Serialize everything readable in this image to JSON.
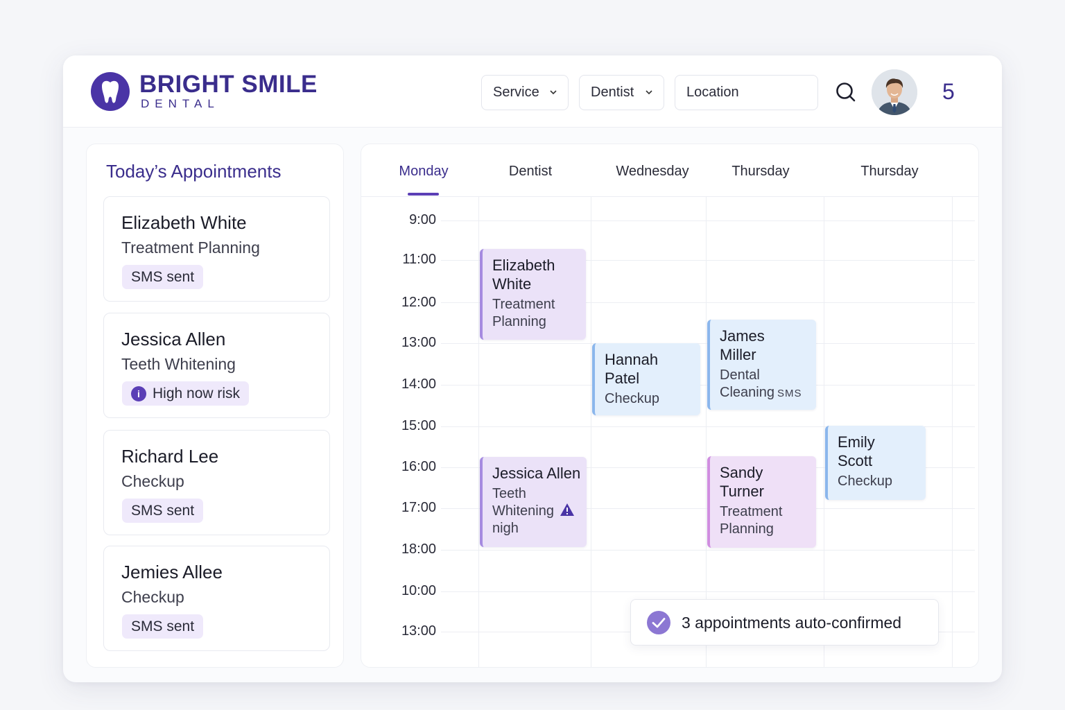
{
  "brand": {
    "title": "BRIGHT SMILE",
    "subtitle": "DENTAL"
  },
  "header": {
    "filters": [
      {
        "label": "Service",
        "type": "dropdown"
      },
      {
        "label": "Dentist",
        "type": "dropdown"
      },
      {
        "label": "Location",
        "type": "text"
      }
    ],
    "search_icon": "search-icon",
    "notification_count": "5"
  },
  "sidebar": {
    "title": "Today’s Appointments",
    "appointments": [
      {
        "name": "Elizabeth White",
        "service": "Treatment Planning",
        "badge": "SMS sent"
      },
      {
        "name": "Jessica Allen",
        "service": "Teeth Whitening",
        "badge": "High now risk",
        "badge_icon": "info-icon"
      },
      {
        "name": "Richard Lee",
        "service": "Checkup",
        "badge": "SMS sent"
      },
      {
        "name": "Jemies Allee",
        "service": "Checkup",
        "badge": "SMS sent"
      }
    ]
  },
  "calendar": {
    "days": [
      "Monday",
      "Dentist",
      "Wednesday",
      "Thursday",
      "Thursday"
    ],
    "active_day": "Monday",
    "times": [
      "9:00",
      "11:00",
      "12:00",
      "13:00",
      "14:00",
      "15:00",
      "16:00",
      "17:00",
      "18:00",
      "10:00",
      "13:00"
    ],
    "events": [
      {
        "name_lines": [
          "Elizabeth",
          "White"
        ],
        "service_lines": [
          "Treatment",
          "Planning"
        ],
        "color": "purple"
      },
      {
        "name_lines": [
          "Hannah",
          "Patel"
        ],
        "service_lines": [
          "Checkup"
        ],
        "color": "blue"
      },
      {
        "name_lines": [
          "James",
          "Miller"
        ],
        "service_lines": [
          "Dental",
          "Cleaning"
        ],
        "tag": "SMS",
        "color": "blue"
      },
      {
        "name_lines": [
          "Emily",
          "Scott"
        ],
        "service_lines": [
          "Checkup"
        ],
        "color": "blue"
      },
      {
        "name_lines": [
          "Jessica Allen"
        ],
        "service_lines": [
          "Teeth",
          "Whitening",
          "nigh"
        ],
        "icon": "warning-icon",
        "color": "purple"
      },
      {
        "name_lines": [
          "Sandy",
          "Turner"
        ],
        "service_lines": [
          "Treatment",
          "Planning"
        ],
        "color": "pink"
      }
    ]
  },
  "toast": {
    "message": "3 appointments auto-confirmed",
    "icon": "check-circle-icon"
  },
  "colors": {
    "brand": "#3a2d8c",
    "accent": "#5b3fb6",
    "purple_event": "#ebe2f8",
    "blue_event": "#e3effc",
    "pink_event": "#efe0f7"
  }
}
